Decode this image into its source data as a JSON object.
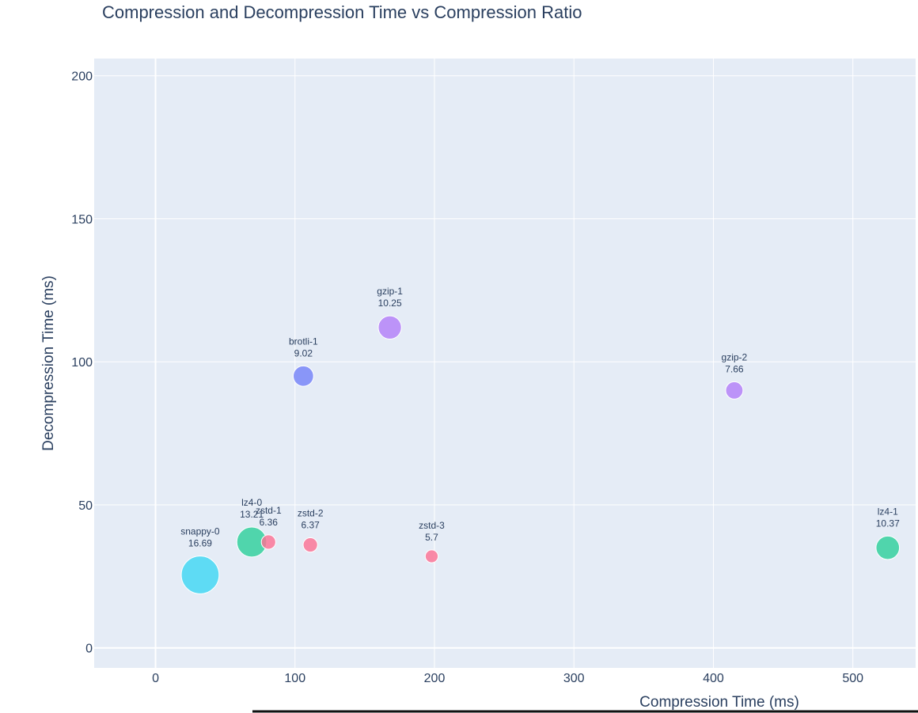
{
  "chart_data": {
    "type": "scatter",
    "title": "Compression and Decompression Time vs Compression Ratio",
    "xlabel": "Compression Time (ms)",
    "ylabel": "Decompression Time (ms)",
    "xlim": [
      -44,
      545
    ],
    "ylim": [
      -7,
      206
    ],
    "xticks": [
      0,
      100,
      200,
      300,
      400,
      500
    ],
    "yticks": [
      0,
      50,
      100,
      150,
      200
    ],
    "grid": true,
    "legend": "none",
    "colors": {
      "plot_bg": "#E5ECF6",
      "grid": "#ffffff",
      "text": "#2a3f5f",
      "snappy": "#3fd7f3",
      "lz4": "#2ecf9b",
      "zstd": "#fb7194",
      "brotli": "#7482f8",
      "gzip": "#b27ff8"
    },
    "points": [
      {
        "name": "snappy-0",
        "ratio": 16.69,
        "x": 32,
        "y": 25.5,
        "color_key": "snappy",
        "ratio_text": "16.69"
      },
      {
        "name": "lz4-0",
        "ratio": 13.21,
        "x": 69,
        "y": 37,
        "color_key": "lz4",
        "ratio_text": "13.21"
      },
      {
        "name": "zstd-1",
        "ratio": 6.36,
        "x": 81,
        "y": 37,
        "color_key": "zstd",
        "ratio_text": "6.36"
      },
      {
        "name": "zstd-2",
        "ratio": 6.37,
        "x": 111,
        "y": 36,
        "color_key": "zstd",
        "ratio_text": "6.37"
      },
      {
        "name": "zstd-3",
        "ratio": 5.7,
        "x": 198,
        "y": 32,
        "color_key": "zstd",
        "ratio_text": "5.7"
      },
      {
        "name": "brotli-1",
        "ratio": 9.02,
        "x": 106,
        "y": 95,
        "color_key": "brotli",
        "ratio_text": "9.02"
      },
      {
        "name": "gzip-1",
        "ratio": 10.25,
        "x": 168,
        "y": 112,
        "color_key": "gzip",
        "ratio_text": "10.25"
      },
      {
        "name": "gzip-2",
        "ratio": 7.66,
        "x": 415,
        "y": 90,
        "color_key": "gzip",
        "ratio_text": "7.66"
      },
      {
        "name": "lz4-1",
        "ratio": 10.37,
        "x": 525,
        "y": 35,
        "color_key": "lz4",
        "ratio_text": "10.37"
      }
    ]
  }
}
